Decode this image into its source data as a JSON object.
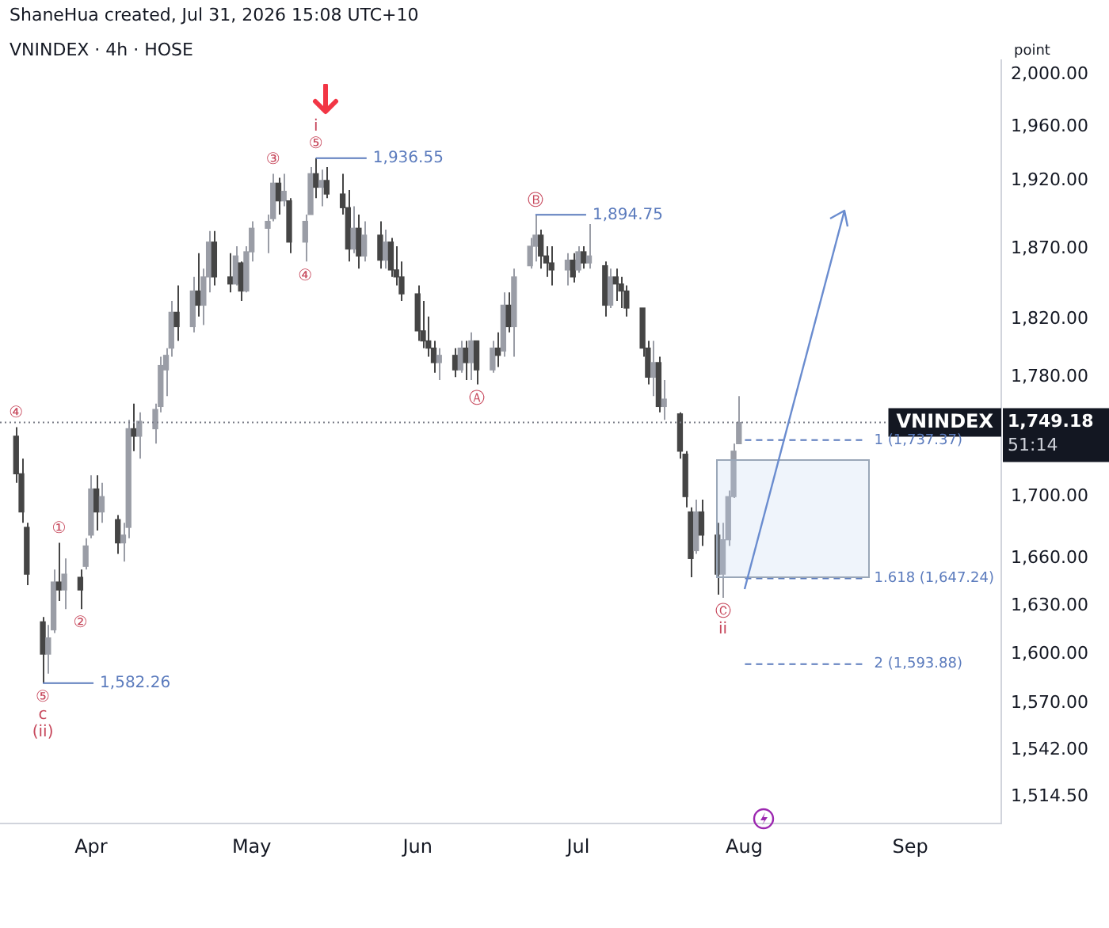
{
  "chart_data": {
    "type": "candlestick",
    "title": "VNINDEX · 4h · HOSE",
    "ylabel": "point",
    "colors": [
      "#454545",
      "#454545",
      "#454545",
      "#454545",
      "#9a9da6",
      "#9a9da6",
      "#454545",
      "#9a9da6",
      "#454545",
      "#9a9da6",
      "#9a9da6",
      "#454545",
      "#9a9da6",
      "#454545",
      "#9a9da6",
      "#9a9da6",
      "#454545",
      "#9a9da6",
      "#9a9da6",
      "#9a9da6",
      "#9a9da6",
      "#9a9da6",
      "#454545",
      "#9a9da6",
      "#454545",
      "#9a9da6",
      "#9a9da6",
      "#454545",
      "#454545",
      "#9a9da6",
      "#454545",
      "#9a9da6",
      "#9a9da6",
      "#9a9da6",
      "#9a9da6",
      "#454545",
      "#9a9da6",
      "#454545",
      "#9a9da6",
      "#9a9da6",
      "#454545",
      "#9a9da6",
      "#454545",
      "#454545",
      "#454545",
      "#9a9da6",
      "#454545",
      "#9a9da6",
      "#454545",
      "#9a9da6",
      "#454545",
      "#454545",
      "#454545",
      "#454545",
      "#454545",
      "#454545",
      "#454545",
      "#9a9da6",
      "#454545",
      "#9a9da6",
      "#454545",
      "#9a9da6",
      "#454545",
      "#9a9da6",
      "#454545",
      "#9a9da6",
      "#454545",
      "#9a9da6",
      "#9a9da6",
      "#9a9da6",
      "#454545",
      "#454545",
      "#454545",
      "#9a9da6",
      "#454545",
      "#9a9da6",
      "#454545",
      "#9a9da6",
      "#454545",
      "#9a9da6",
      "#454545",
      "#454545",
      "#454545",
      "#454545",
      "#454545",
      "#9a9da6",
      "#454545",
      "#9a9da6",
      "#454545",
      "#454545",
      "#454545",
      "#9a9da6",
      "#454545",
      "#454545",
      "#9a9da6",
      "#9a9da6",
      "#9a9da6",
      "#9a9da6"
    ],
    "x": [
      "2026-03-18",
      "2026-03-19",
      "2026-03-20",
      "2026-03-23",
      "2026-03-24",
      "2026-03-25",
      "2026-03-26",
      "2026-03-27",
      "2026-03-30",
      "2026-03-31",
      "2026-04-01",
      "2026-04-02",
      "2026-04-03",
      "2026-04-06",
      "2026-04-07",
      "2026-04-08",
      "2026-04-09",
      "2026-04-10",
      "2026-04-13",
      "2026-04-14",
      "2026-04-15",
      "2026-04-16",
      "2026-04-17",
      "2026-04-20",
      "2026-04-21",
      "2026-04-22",
      "2026-04-23",
      "2026-04-24",
      "2026-04-27",
      "2026-04-28",
      "2026-04-29",
      "2026-04-30",
      "2026-05-01",
      "2026-05-04",
      "2026-05-05",
      "2026-05-06",
      "2026-05-07",
      "2026-05-08",
      "2026-05-11",
      "2026-05-12",
      "2026-05-13",
      "2026-05-14",
      "2026-05-15",
      "2026-05-18",
      "2026-05-19",
      "2026-05-20",
      "2026-05-21",
      "2026-05-22",
      "2026-05-25",
      "2026-05-26",
      "2026-05-27",
      "2026-05-28",
      "2026-05-29",
      "2026-06-01",
      "2026-06-02",
      "2026-06-03",
      "2026-06-04",
      "2026-06-05",
      "2026-06-08",
      "2026-06-09",
      "2026-06-10",
      "2026-06-11",
      "2026-06-12",
      "2026-06-15",
      "2026-06-16",
      "2026-06-17",
      "2026-06-18",
      "2026-06-19",
      "2026-06-22",
      "2026-06-23",
      "2026-06-24",
      "2026-06-25",
      "2026-06-26",
      "2026-06-29",
      "2026-06-30",
      "2026-07-01",
      "2026-07-02",
      "2026-07-03",
      "2026-07-06",
      "2026-07-07",
      "2026-07-08",
      "2026-07-09",
      "2026-07-10",
      "2026-07-13",
      "2026-07-14",
      "2026-07-15",
      "2026-07-16",
      "2026-07-17",
      "2026-07-20",
      "2026-07-21",
      "2026-07-22",
      "2026-07-23",
      "2026-07-24",
      "2026-07-27",
      "2026-07-28",
      "2026-07-29",
      "2026-07-30",
      "2026-07-31"
    ],
    "ohlc": [
      [
        1740,
        1746,
        1709,
        1715
      ],
      [
        1715,
        1725,
        1683,
        1690
      ],
      [
        1680,
        1683,
        1643,
        1650
      ],
      [
        1620,
        1623,
        1582.26,
        1600
      ],
      [
        1600,
        1618,
        1588,
        1610
      ],
      [
        1615,
        1653,
        1613,
        1645
      ],
      [
        1645,
        1670,
        1633,
        1640
      ],
      [
        1640,
        1660,
        1628,
        1650
      ],
      [
        1648,
        1653,
        1628,
        1640
      ],
      [
        1655,
        1673,
        1653,
        1668
      ],
      [
        1675,
        1714,
        1673,
        1705
      ],
      [
        1705,
        1714,
        1678,
        1690
      ],
      [
        1690,
        1709,
        1683,
        1700
      ],
      [
        1685,
        1688,
        1663,
        1670
      ],
      [
        1670,
        1683,
        1658,
        1675
      ],
      [
        1680,
        1751,
        1673,
        1745
      ],
      [
        1745,
        1762,
        1730,
        1740
      ],
      [
        1740,
        1756,
        1725,
        1750
      ],
      [
        1745,
        1762,
        1735,
        1758
      ],
      [
        1760,
        1794,
        1756,
        1788
      ],
      [
        1785,
        1800,
        1767,
        1795
      ],
      [
        1800,
        1833,
        1794,
        1825
      ],
      [
        1825,
        1844,
        1805,
        1815
      ],
      [
        1815,
        1850,
        1811,
        1840
      ],
      [
        1840,
        1867,
        1822,
        1830
      ],
      [
        1830,
        1856,
        1816,
        1850
      ],
      [
        1850,
        1883,
        1839,
        1875
      ],
      [
        1875,
        1883,
        1844,
        1850
      ],
      [
        1850,
        1867,
        1839,
        1845
      ],
      [
        1845,
        1872,
        1844,
        1865
      ],
      [
        1860,
        1861,
        1833,
        1840
      ],
      [
        1840,
        1872,
        1839,
        1868
      ],
      [
        1868,
        1890,
        1861,
        1885
      ],
      [
        1885,
        1895,
        1867,
        1890
      ],
      [
        1892,
        1925,
        1890,
        1918
      ],
      [
        1918,
        1922,
        1895,
        1905
      ],
      [
        1905,
        1925,
        1901,
        1912
      ],
      [
        1905,
        1907,
        1867,
        1875
      ],
      [
        1875,
        1895,
        1861,
        1890
      ],
      [
        1895,
        1930,
        1895,
        1925
      ],
      [
        1925,
        1936.55,
        1907,
        1915
      ],
      [
        1915,
        1928,
        1901,
        1920
      ],
      [
        1920,
        1930,
        1907,
        1910
      ],
      [
        1910,
        1925,
        1895,
        1900
      ],
      [
        1900,
        1913,
        1861,
        1870
      ],
      [
        1870,
        1901,
        1867,
        1885
      ],
      [
        1885,
        1895,
        1856,
        1865
      ],
      [
        1865,
        1890,
        1861,
        1880
      ],
      [
        1880,
        1890,
        1856,
        1862
      ],
      [
        1862,
        1884,
        1856,
        1875
      ],
      [
        1875,
        1878,
        1850,
        1855
      ],
      [
        1855,
        1872,
        1844,
        1850
      ],
      [
        1850,
        1861,
        1833,
        1838
      ],
      [
        1838,
        1844,
        1805,
        1812
      ],
      [
        1812,
        1833,
        1800,
        1805
      ],
      [
        1805,
        1822,
        1794,
        1800
      ],
      [
        1800,
        1805,
        1783,
        1790
      ],
      [
        1790,
        1800,
        1778,
        1795
      ],
      [
        1795,
        1800,
        1780,
        1785
      ],
      [
        1785,
        1805,
        1783,
        1800
      ],
      [
        1800,
        1805,
        1778,
        1790
      ],
      [
        1790,
        1811,
        1778,
        1805
      ],
      [
        1805,
        1805,
        1775,
        1785
      ],
      [
        1785,
        1805,
        1783,
        1800
      ],
      [
        1800,
        1811,
        1787,
        1795
      ],
      [
        1798,
        1839,
        1794,
        1830
      ],
      [
        1830,
        1839,
        1811,
        1815
      ],
      [
        1815,
        1856,
        1794,
        1850
      ],
      [
        1858,
        1878,
        1856,
        1872
      ],
      [
        1872,
        1894.75,
        1861,
        1880
      ],
      [
        1880,
        1884,
        1856,
        1865
      ],
      [
        1865,
        1872,
        1850,
        1860
      ],
      [
        1860,
        1872,
        1844,
        1855
      ],
      [
        1855,
        1867,
        1844,
        1862
      ],
      [
        1862,
        1867,
        1846,
        1850
      ],
      [
        1855,
        1872,
        1853,
        1868
      ],
      [
        1868,
        1872,
        1856,
        1860
      ],
      [
        1860,
        1888,
        1856,
        1865
      ],
      [
        1858,
        1861,
        1822,
        1830
      ],
      [
        1830,
        1856,
        1828,
        1850
      ],
      [
        1850,
        1856,
        1833,
        1845
      ],
      [
        1845,
        1850,
        1828,
        1840
      ],
      [
        1840,
        1844,
        1822,
        1828
      ],
      [
        1828,
        1828,
        1794,
        1800
      ],
      [
        1800,
        1805,
        1775,
        1780
      ],
      [
        1780,
        1805,
        1767,
        1790
      ],
      [
        1790,
        1794,
        1756,
        1760
      ],
      [
        1760,
        1778,
        1751,
        1765
      ],
      [
        1755,
        1756,
        1725,
        1730
      ],
      [
        1728,
        1730,
        1693,
        1700
      ],
      [
        1690,
        1693,
        1648,
        1660
      ],
      [
        1665,
        1698,
        1663,
        1690
      ],
      [
        1690,
        1698,
        1668,
        1675
      ],
      [
        1675,
        1683,
        1637,
        1650
      ],
      [
        1650,
        1683,
        1635,
        1672
      ],
      [
        1672,
        1704,
        1668,
        1700
      ],
      [
        1700,
        1735,
        1699,
        1730
      ],
      [
        1735,
        1767,
        1735,
        1749.18
      ]
    ],
    "xlim": [
      "2026-03-15",
      "2026-09-18"
    ],
    "xticks": [
      {
        "value": "2026-04-01",
        "label": "Apr"
      },
      {
        "value": "2026-05-01",
        "label": "May"
      },
      {
        "value": "2026-06-01",
        "label": "Jun"
      },
      {
        "value": "2026-07-01",
        "label": "Jul"
      },
      {
        "value": "2026-08-01",
        "label": "Aug"
      },
      {
        "value": "2026-09-01",
        "label": "Sep"
      }
    ],
    "log": "y",
    "ylim": [
      1499,
      2011
    ],
    "yticks": [
      {
        "value": 2000,
        "label": "2,000.00"
      },
      {
        "value": 1960,
        "label": "1,960.00"
      },
      {
        "value": 1920,
        "label": "1,920.00"
      },
      {
        "value": 1870,
        "label": "1,870.00"
      },
      {
        "value": 1820,
        "label": "1,820.00"
      },
      {
        "value": 1780,
        "label": "1,780.00"
      },
      {
        "value": 1700,
        "label": "1,700.00"
      },
      {
        "value": 1660,
        "label": "1,660.00"
      },
      {
        "value": 1630,
        "label": "1,630.00"
      },
      {
        "value": 1600,
        "label": "1,600.00"
      },
      {
        "value": 1570,
        "label": "1,570.00"
      },
      {
        "value": 1542,
        "label": "1,542.00"
      },
      {
        "value": 1514.5,
        "label": "1,514.50"
      }
    ],
    "grid": false,
    "legend": false,
    "ref_lines": [
      {
        "axis": "y",
        "value": 1749.18,
        "label": "VNINDEX",
        "line_style": "dotted",
        "color": "#787b86"
      },
      {
        "axis": "y",
        "value": 1737.37,
        "label": "1 (1,737.37)",
        "line_style": "dashed",
        "color": "#5b7bbd"
      },
      {
        "axis": "y",
        "value": 1647.24,
        "label": "1.618 (1,647.24)",
        "line_style": "dashed",
        "color": "#5b7bbd"
      },
      {
        "axis": "y",
        "value": 1593.88,
        "label": "2 (1,593.88)",
        "line_style": "dashed",
        "color": "#5b7bbd"
      }
    ],
    "annotations": [
      "ShaneHua created, Jul 31, 2026 15:08 UTC+10",
      "1,749.18",
      "51:14",
      {
        "text": "④",
        "x": "2026-03-18",
        "y": 1746
      },
      {
        "text": "①",
        "x": "2026-03-26",
        "y": 1670
      },
      {
        "text": "②",
        "x": "2026-03-30",
        "y": 1628
      },
      {
        "text": "⑤",
        "x": "2026-03-23",
        "y": 1582.26
      },
      {
        "text": "c",
        "x": "2026-03-23",
        "y": 1582.26
      },
      {
        "text": "(ii)",
        "x": "2026-03-23",
        "y": 1582.26
      },
      {
        "text": "1,582.26",
        "x": "2026-03-23",
        "y": 1582.26
      },
      {
        "text": "③",
        "x": "2026-05-05",
        "y": 1925
      },
      {
        "text": "④",
        "x": "2026-05-11",
        "y": 1861
      },
      {
        "text": "⑤",
        "x": "2026-05-13",
        "y": 1936.55
      },
      {
        "text": "i",
        "x": "2026-05-13",
        "y": 1936.55
      },
      {
        "text": "1,936.55",
        "x": "2026-05-13",
        "y": 1936.55
      },
      {
        "text": "Ⓐ",
        "x": "2026-06-12",
        "y": 1775
      },
      {
        "text": "Ⓑ",
        "x": "2026-06-23",
        "y": 1894.75
      },
      {
        "text": "1,894.75",
        "x": "2026-06-23",
        "y": 1894.75
      },
      {
        "text": "Ⓒ",
        "x": "2026-07-28",
        "y": 1635
      },
      {
        "text": "ii",
        "x": "2026-07-28",
        "y": 1635
      }
    ]
  }
}
